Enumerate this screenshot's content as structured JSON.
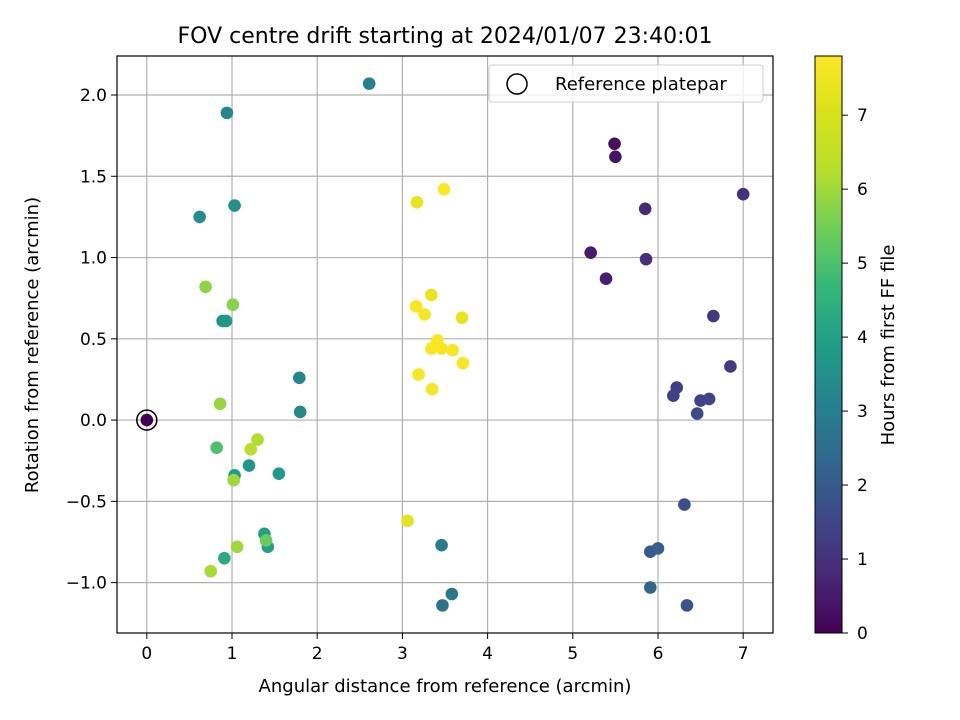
{
  "chart_data": {
    "type": "scatter",
    "title": "FOV centre drift starting at 2024/01/07 23:40:01",
    "xlabel": "Angular distance from reference (arcmin)",
    "ylabel": "Rotation from reference (arcmin)",
    "xlim": [
      -0.35,
      7.35
    ],
    "ylim": [
      -1.31,
      2.24
    ],
    "x_ticks": [
      0,
      1,
      2,
      3,
      4,
      5,
      6,
      7
    ],
    "x_tick_labels": [
      "0",
      "1",
      "2",
      "3",
      "4",
      "5",
      "6",
      "7"
    ],
    "y_ticks": [
      -1.0,
      -0.5,
      0.0,
      0.5,
      1.0,
      1.5,
      2.0
    ],
    "y_tick_labels": [
      "−1.0",
      "−0.5",
      "0.0",
      "0.5",
      "1.0",
      "1.5",
      "2.0"
    ],
    "grid": true,
    "legend": {
      "position": "top-right",
      "entries": [
        "Reference platepar"
      ]
    },
    "colorbar": {
      "label": "Hours from first FF file",
      "colormap": "viridis",
      "range": [
        0,
        7.8
      ],
      "ticks": [
        0,
        1,
        2,
        3,
        4,
        5,
        6,
        7
      ],
      "tick_labels": [
        "0",
        "1",
        "2",
        "3",
        "4",
        "5",
        "6",
        "7"
      ]
    },
    "reference_point": {
      "x": 0,
      "y": 0
    },
    "points": [
      {
        "x": 0.0,
        "y": 0.0,
        "c": 0.0
      },
      {
        "x": 5.49,
        "y": 1.7,
        "c": 0.3
      },
      {
        "x": 5.5,
        "y": 1.62,
        "c": 0.4
      },
      {
        "x": 5.21,
        "y": 1.03,
        "c": 0.5
      },
      {
        "x": 5.39,
        "y": 0.87,
        "c": 0.6
      },
      {
        "x": 5.85,
        "y": 1.3,
        "c": 0.8
      },
      {
        "x": 5.86,
        "y": 0.99,
        "c": 0.9
      },
      {
        "x": 7.0,
        "y": 1.39,
        "c": 1.0
      },
      {
        "x": 6.65,
        "y": 0.64,
        "c": 1.1
      },
      {
        "x": 6.85,
        "y": 0.33,
        "c": 1.2
      },
      {
        "x": 6.22,
        "y": 0.2,
        "c": 1.3
      },
      {
        "x": 6.18,
        "y": 0.15,
        "c": 1.4
      },
      {
        "x": 6.5,
        "y": 0.12,
        "c": 1.4
      },
      {
        "x": 6.6,
        "y": 0.13,
        "c": 1.5
      },
      {
        "x": 6.46,
        "y": 0.04,
        "c": 1.6
      },
      {
        "x": 6.31,
        "y": -0.52,
        "c": 1.7
      },
      {
        "x": 6.34,
        "y": -1.14,
        "c": 1.8
      },
      {
        "x": 5.91,
        "y": -0.81,
        "c": 2.0
      },
      {
        "x": 6.0,
        "y": -0.79,
        "c": 2.1
      },
      {
        "x": 5.91,
        "y": -1.03,
        "c": 2.3
      },
      {
        "x": 3.47,
        "y": -1.14,
        "c": 2.7
      },
      {
        "x": 3.58,
        "y": -1.07,
        "c": 2.8
      },
      {
        "x": 3.46,
        "y": -0.77,
        "c": 2.9
      },
      {
        "x": 2.61,
        "y": 2.07,
        "c": 3.1
      },
      {
        "x": 1.79,
        "y": 0.26,
        "c": 3.2
      },
      {
        "x": 1.8,
        "y": 0.05,
        "c": 3.3
      },
      {
        "x": 0.94,
        "y": 1.89,
        "c": 3.3
      },
      {
        "x": 0.62,
        "y": 1.25,
        "c": 3.4
      },
      {
        "x": 1.03,
        "y": 1.32,
        "c": 3.5
      },
      {
        "x": 0.89,
        "y": 0.61,
        "c": 3.6
      },
      {
        "x": 0.93,
        "y": 0.61,
        "c": 3.7
      },
      {
        "x": 1.2,
        "y": -0.28,
        "c": 3.7
      },
      {
        "x": 1.55,
        "y": -0.33,
        "c": 3.8
      },
      {
        "x": 1.03,
        "y": -0.34,
        "c": 3.9
      },
      {
        "x": 1.38,
        "y": -0.7,
        "c": 3.9
      },
      {
        "x": 1.42,
        "y": -0.78,
        "c": 4.0
      },
      {
        "x": 0.91,
        "y": -0.85,
        "c": 4.3
      },
      {
        "x": 0.82,
        "y": -0.17,
        "c": 5.0
      },
      {
        "x": 1.4,
        "y": -0.74,
        "c": 5.4
      },
      {
        "x": 1.01,
        "y": 0.71,
        "c": 5.7
      },
      {
        "x": 0.69,
        "y": 0.82,
        "c": 5.8
      },
      {
        "x": 0.86,
        "y": 0.1,
        "c": 5.9
      },
      {
        "x": 1.02,
        "y": -0.37,
        "c": 6.0
      },
      {
        "x": 1.06,
        "y": -0.78,
        "c": 6.0
      },
      {
        "x": 0.75,
        "y": -0.93,
        "c": 6.1
      },
      {
        "x": 1.3,
        "y": -0.12,
        "c": 6.2
      },
      {
        "x": 1.22,
        "y": -0.18,
        "c": 6.3
      },
      {
        "x": 3.06,
        "y": -0.62,
        "c": 7.3
      },
      {
        "x": 3.17,
        "y": 1.34,
        "c": 7.4
      },
      {
        "x": 3.49,
        "y": 1.42,
        "c": 7.8
      },
      {
        "x": 3.16,
        "y": 0.7,
        "c": 7.7
      },
      {
        "x": 3.26,
        "y": 0.65,
        "c": 7.7
      },
      {
        "x": 3.34,
        "y": 0.77,
        "c": 7.4
      },
      {
        "x": 3.7,
        "y": 0.63,
        "c": 7.4
      },
      {
        "x": 3.41,
        "y": 0.49,
        "c": 7.7
      },
      {
        "x": 3.34,
        "y": 0.44,
        "c": 7.7
      },
      {
        "x": 3.46,
        "y": 0.44,
        "c": 7.7
      },
      {
        "x": 3.59,
        "y": 0.43,
        "c": 7.7
      },
      {
        "x": 3.71,
        "y": 0.35,
        "c": 7.7
      },
      {
        "x": 3.19,
        "y": 0.28,
        "c": 7.7
      },
      {
        "x": 3.35,
        "y": 0.19,
        "c": 7.6
      }
    ]
  }
}
